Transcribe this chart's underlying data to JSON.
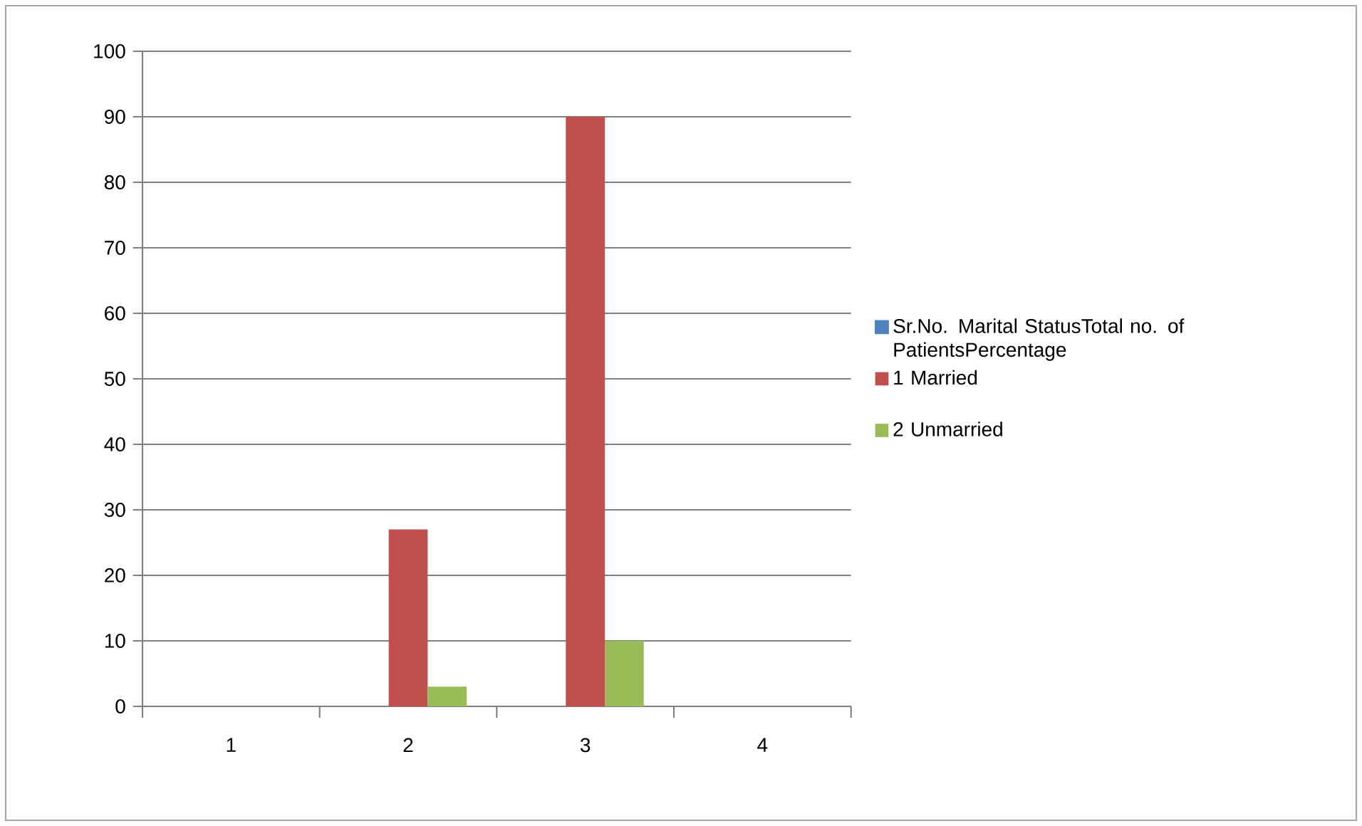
{
  "chart_data": {
    "type": "bar",
    "categories": [
      "1",
      "2",
      "3",
      "4"
    ],
    "series": [
      {
        "name": "Sr.No. Marital StatusTotal no. of PatientsPercentage",
        "color": "#4f81bd",
        "values": [
          null,
          null,
          null,
          null
        ]
      },
      {
        "name": "1 Married",
        "color": "#c0504d",
        "values": [
          null,
          27,
          90,
          null
        ]
      },
      {
        "name": "2 Unmarried",
        "color": "#9bbb59",
        "values": [
          null,
          3,
          10,
          null
        ]
      }
    ],
    "ylim": [
      0,
      100
    ],
    "yticks": [
      0,
      10,
      20,
      30,
      40,
      50,
      60,
      70,
      80,
      90,
      100
    ],
    "grid": "y",
    "legend": "right"
  }
}
